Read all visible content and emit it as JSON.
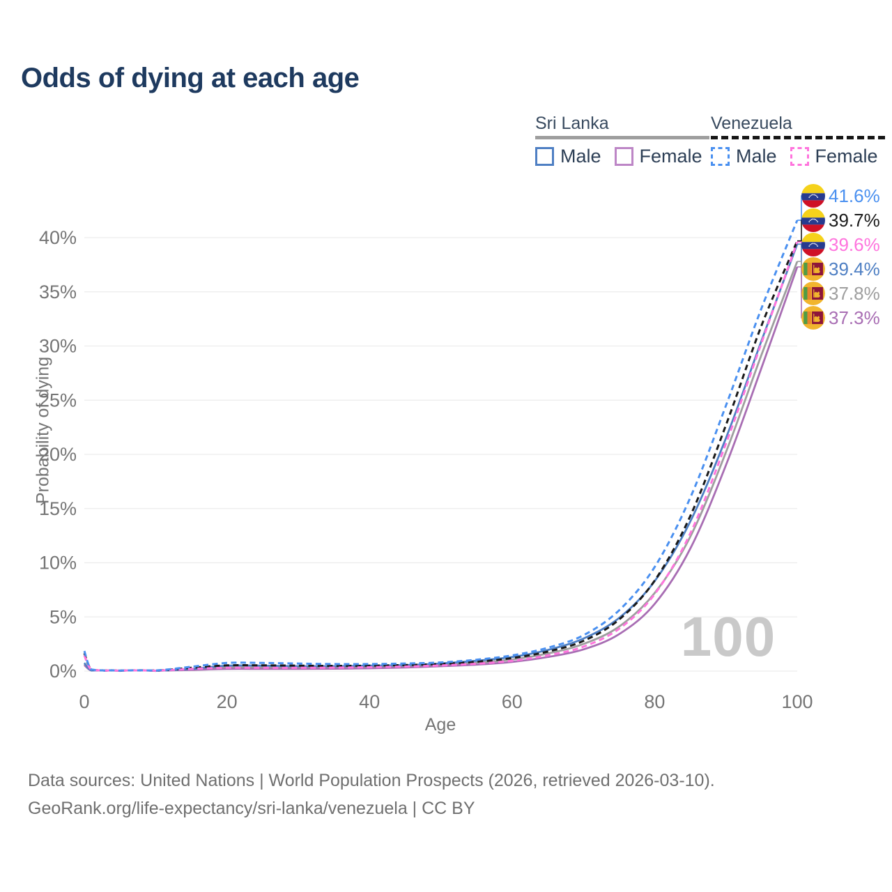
{
  "page": {
    "title": "Odds of dying at each age"
  },
  "legend": {
    "groups": [
      {
        "label": "Sri Lanka",
        "line_style": "solid",
        "line_color": "#9e9e9e",
        "items": [
          {
            "label": "Male",
            "style": "solid",
            "color": "#4e7fc3"
          },
          {
            "label": "Female",
            "style": "solid",
            "color": "#bd86c6"
          }
        ]
      },
      {
        "label": "Venezuela",
        "line_style": "dashed",
        "line_color": "#161616",
        "items": [
          {
            "label": "Male",
            "style": "dashed",
            "color": "#4a90f0"
          },
          {
            "label": "Female",
            "style": "dashed",
            "color": "#ff74dd"
          }
        ]
      }
    ]
  },
  "chart_data": {
    "type": "line",
    "title": "Odds of dying at each age",
    "xlabel": "Age",
    "ylabel": "Probability of dying",
    "xlim": [
      0,
      100
    ],
    "ylim_pct": [
      0,
      43.5
    ],
    "grid": true,
    "x_ticks": [
      0,
      20,
      40,
      60,
      80,
      100
    ],
    "y_ticks_pct": [
      0,
      5,
      10,
      15,
      20,
      25,
      30,
      35,
      40
    ],
    "watermark": "100",
    "x": [
      0,
      1,
      3,
      5,
      10,
      15,
      20,
      25,
      30,
      35,
      40,
      45,
      50,
      55,
      60,
      65,
      70,
      75,
      80,
      85,
      90,
      95,
      100
    ],
    "series": [
      {
        "name": "Sri Lanka Both",
        "country": "sri-lanka",
        "sex": "both",
        "style": "solid",
        "color": "#9e9e9e",
        "values": [
          0.65,
          0.055,
          0.035,
          0.025,
          0.025,
          0.15,
          0.35,
          0.35,
          0.33,
          0.33,
          0.38,
          0.44,
          0.57,
          0.78,
          1.07,
          1.62,
          2.5,
          4.1,
          7.2,
          12.4,
          20.2,
          29.2,
          37.8
        ]
      },
      {
        "name": "Sri Lanka Female",
        "country": "sri-lanka",
        "sex": "female",
        "style": "solid",
        "color": "#a86db3",
        "values": [
          0.55,
          0.05,
          0.03,
          0.02,
          0.02,
          0.1,
          0.2,
          0.2,
          0.2,
          0.22,
          0.26,
          0.33,
          0.45,
          0.6,
          0.85,
          1.3,
          2.0,
          3.4,
          6.2,
          11.3,
          19.0,
          28.0,
          37.3
        ]
      },
      {
        "name": "Sri Lanka Male",
        "country": "sri-lanka",
        "sex": "male",
        "style": "solid",
        "color": "#4e7fc3",
        "values": [
          0.75,
          0.06,
          0.04,
          0.03,
          0.03,
          0.2,
          0.5,
          0.5,
          0.45,
          0.45,
          0.5,
          0.55,
          0.7,
          0.95,
          1.3,
          1.95,
          3.0,
          4.9,
          8.3,
          13.8,
          21.5,
          30.5,
          39.4
        ]
      },
      {
        "name": "Venezuela Both",
        "country": "venezuela",
        "sex": "both",
        "style": "dashed",
        "color": "#1a1a1a",
        "values": [
          1.65,
          0.135,
          0.055,
          0.045,
          0.05,
          0.3,
          0.53,
          0.53,
          0.5,
          0.48,
          0.5,
          0.56,
          0.66,
          0.86,
          1.2,
          1.8,
          2.78,
          4.75,
          8.35,
          14.3,
          22.7,
          31.9,
          39.7
        ]
      },
      {
        "name": "Venezuela Female",
        "country": "venezuela",
        "sex": "female",
        "style": "dashed",
        "color": "#ff74dd",
        "values": [
          1.45,
          0.12,
          0.05,
          0.04,
          0.04,
          0.2,
          0.3,
          0.3,
          0.3,
          0.32,
          0.36,
          0.42,
          0.52,
          0.68,
          0.95,
          1.45,
          2.25,
          3.9,
          7.1,
          12.7,
          21.0,
          30.3,
          39.6
        ]
      },
      {
        "name": "Venezuela Male",
        "country": "venezuela",
        "sex": "male",
        "style": "dashed",
        "color": "#4a90f0",
        "values": [
          1.85,
          0.15,
          0.06,
          0.05,
          0.06,
          0.4,
          0.75,
          0.75,
          0.7,
          0.65,
          0.65,
          0.7,
          0.8,
          1.05,
          1.45,
          2.15,
          3.3,
          5.6,
          9.6,
          16.0,
          24.5,
          33.5,
          41.6
        ]
      }
    ],
    "end_labels": [
      {
        "flag": "venezuela",
        "value": "41.6%",
        "color": "#4a90f0"
      },
      {
        "flag": "venezuela",
        "value": "39.7%",
        "color": "#1a1a1a"
      },
      {
        "flag": "venezuela",
        "value": "39.6%",
        "color": "#ff74dd"
      },
      {
        "flag": "sri-lanka",
        "value": "39.4%",
        "color": "#4e7fc3"
      },
      {
        "flag": "sri-lanka",
        "value": "37.8%",
        "color": "#9e9e9e"
      },
      {
        "flag": "sri-lanka",
        "value": "37.3%",
        "color": "#a86db3"
      }
    ]
  },
  "footer": {
    "line1": "Data sources: United Nations | World Population Prospects (2026, retrieved 2026-03-10).",
    "line2": "GeoRank.org/life-expectancy/sri-lanka/venezuela | CC BY"
  }
}
